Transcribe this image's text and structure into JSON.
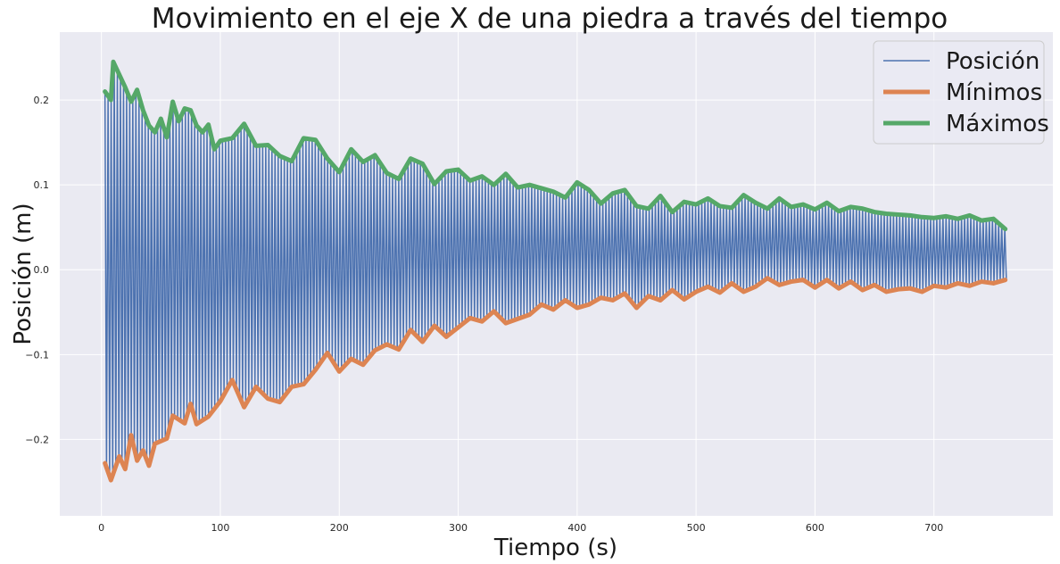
{
  "chart_data": {
    "type": "line",
    "title": "Movimiento en el eje X de una piedra a través del tiempo",
    "xlabel": "Tiempo (s)",
    "ylabel": "Posición (m)",
    "xlim": [
      -35,
      800
    ],
    "ylim": [
      -0.29,
      0.28
    ],
    "xticks": [
      0,
      100,
      200,
      300,
      400,
      500,
      600,
      700
    ],
    "yticks": [
      -0.2,
      -0.1,
      0.0,
      0.1,
      0.2
    ],
    "grid": true,
    "legend_position": "top-right",
    "background": "#eaeaf2",
    "series": [
      {
        "name": "Posición",
        "color": "#4c72b0",
        "linewidth": 1.5,
        "kind": "oscillation",
        "x_range": [
          3,
          762
        ],
        "period_s": 2.6,
        "envelope_ref": [
          "Mínimos",
          "Máximos"
        ]
      },
      {
        "name": "Mínimos",
        "color": "#dd8452",
        "linewidth": 5,
        "x": [
          3,
          8,
          15,
          20,
          25,
          30,
          35,
          40,
          45,
          55,
          60,
          70,
          75,
          80,
          90,
          100,
          110,
          120,
          130,
          140,
          150,
          160,
          170,
          180,
          190,
          200,
          210,
          220,
          230,
          240,
          250,
          260,
          270,
          280,
          290,
          300,
          310,
          320,
          330,
          340,
          350,
          360,
          370,
          380,
          390,
          400,
          410,
          420,
          430,
          440,
          450,
          460,
          470,
          480,
          490,
          500,
          510,
          520,
          530,
          540,
          550,
          560,
          570,
          580,
          590,
          600,
          610,
          620,
          630,
          640,
          650,
          660,
          670,
          680,
          690,
          700,
          710,
          720,
          730,
          740,
          750,
          760
        ],
        "y": [
          -0.228,
          -0.248,
          -0.22,
          -0.235,
          -0.195,
          -0.225,
          -0.213,
          -0.231,
          -0.205,
          -0.199,
          -0.172,
          -0.181,
          -0.158,
          -0.182,
          -0.173,
          -0.155,
          -0.13,
          -0.162,
          -0.138,
          -0.152,
          -0.156,
          -0.138,
          -0.135,
          -0.118,
          -0.098,
          -0.12,
          -0.105,
          -0.112,
          -0.095,
          -0.088,
          -0.094,
          -0.071,
          -0.085,
          -0.066,
          -0.079,
          -0.068,
          -0.057,
          -0.061,
          -0.049,
          -0.063,
          -0.058,
          -0.053,
          -0.041,
          -0.047,
          -0.036,
          -0.045,
          -0.041,
          -0.033,
          -0.036,
          -0.028,
          -0.045,
          -0.031,
          -0.036,
          -0.024,
          -0.035,
          -0.026,
          -0.02,
          -0.027,
          -0.016,
          -0.026,
          -0.02,
          -0.01,
          -0.018,
          -0.014,
          -0.012,
          -0.021,
          -0.012,
          -0.022,
          -0.014,
          -0.024,
          -0.018,
          -0.026,
          -0.023,
          -0.022,
          -0.026,
          -0.019,
          -0.021,
          -0.016,
          -0.019,
          -0.014,
          -0.016,
          -0.012
        ]
      },
      {
        "name": "Máximos",
        "color": "#55a868",
        "linewidth": 5,
        "x": [
          3,
          8,
          10,
          15,
          20,
          25,
          30,
          35,
          40,
          45,
          50,
          55,
          60,
          65,
          70,
          75,
          80,
          85,
          90,
          95,
          100,
          110,
          120,
          130,
          140,
          150,
          160,
          170,
          180,
          190,
          200,
          210,
          220,
          230,
          240,
          250,
          260,
          270,
          280,
          290,
          300,
          310,
          320,
          330,
          340,
          350,
          360,
          370,
          380,
          390,
          400,
          410,
          420,
          430,
          440,
          450,
          460,
          470,
          480,
          490,
          500,
          510,
          520,
          530,
          540,
          550,
          560,
          570,
          580,
          590,
          600,
          610,
          620,
          630,
          640,
          650,
          660,
          670,
          680,
          690,
          700,
          710,
          720,
          730,
          740,
          750,
          760
        ],
        "y": [
          0.21,
          0.2,
          0.245,
          0.23,
          0.215,
          0.198,
          0.212,
          0.188,
          0.17,
          0.162,
          0.178,
          0.156,
          0.198,
          0.175,
          0.19,
          0.188,
          0.17,
          0.162,
          0.171,
          0.142,
          0.152,
          0.155,
          0.172,
          0.146,
          0.147,
          0.134,
          0.128,
          0.155,
          0.153,
          0.131,
          0.115,
          0.142,
          0.127,
          0.135,
          0.114,
          0.107,
          0.131,
          0.125,
          0.101,
          0.116,
          0.118,
          0.105,
          0.11,
          0.1,
          0.113,
          0.097,
          0.1,
          0.096,
          0.092,
          0.085,
          0.103,
          0.094,
          0.078,
          0.09,
          0.094,
          0.075,
          0.072,
          0.087,
          0.068,
          0.08,
          0.077,
          0.084,
          0.075,
          0.073,
          0.088,
          0.079,
          0.072,
          0.084,
          0.074,
          0.077,
          0.071,
          0.079,
          0.069,
          0.074,
          0.072,
          0.068,
          0.066,
          0.065,
          0.064,
          0.062,
          0.061,
          0.063,
          0.06,
          0.064,
          0.058,
          0.06,
          0.048
        ]
      }
    ]
  }
}
